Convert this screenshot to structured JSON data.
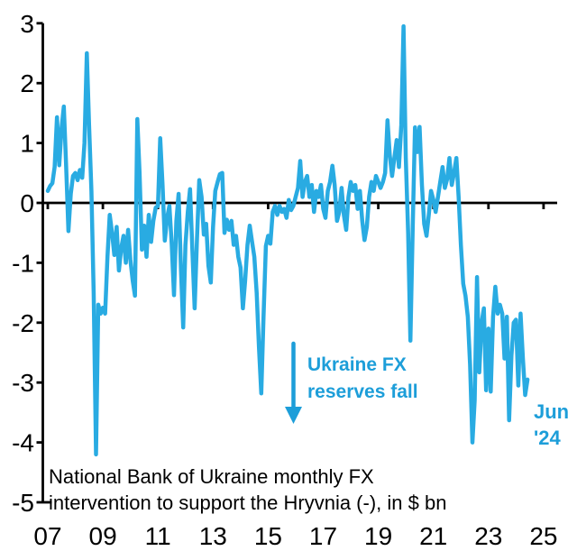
{
  "chart_data": {
    "type": "line",
    "title": "",
    "series_name": "National Bank of Ukraine monthly FX intervention, $ bn",
    "x_monthly_from": "2007-01",
    "x_monthly_to": "2024-06",
    "monthly_values": [
      0.2,
      0.28,
      0.33,
      0.6,
      1.43,
      0.63,
      1.25,
      1.61,
      0.6,
      -0.47,
      0.15,
      0.45,
      0.5,
      0.38,
      0.55,
      0.42,
      1.0,
      2.5,
      1.3,
      0.2,
      -1.5,
      -4.2,
      -1.7,
      -1.85,
      -1.75,
      -1.85,
      -0.9,
      -0.2,
      -0.5,
      -0.87,
      -0.4,
      -1.13,
      -0.75,
      -0.55,
      -1.0,
      -0.45,
      -0.95,
      -1.3,
      -1.55,
      1.4,
      0.5,
      -0.78,
      -0.38,
      -0.9,
      -0.2,
      -0.65,
      -0.3,
      -0.08,
      -0.05,
      1.08,
      0.3,
      -0.63,
      -0.25,
      -0.05,
      -0.7,
      -1.54,
      -0.3,
      0.15,
      -1.1,
      -2.08,
      -0.7,
      -0.15,
      0.23,
      -0.8,
      -1.76,
      -0.6,
      0.38,
      0.1,
      -0.53,
      -0.35,
      -1.05,
      -1.33,
      -0.4,
      0.2,
      0.35,
      0.48,
      0.5,
      -0.5,
      -0.28,
      -0.45,
      -0.3,
      -0.7,
      -0.55,
      -0.9,
      -1.08,
      -1.76,
      -1.3,
      -0.7,
      -0.38,
      -0.65,
      -0.9,
      -1.5,
      -2.4,
      -3.18,
      -1.9,
      -0.72,
      -0.55,
      -0.68,
      -0.15,
      -0.05,
      -0.2,
      -0.05,
      -0.15,
      -0.1,
      -0.25,
      0.05,
      -0.12,
      -0.05,
      0.1,
      0.25,
      0.7,
      0.1,
      0.35,
      0.45,
      0.1,
      0.3,
      -0.15,
      0.2,
      0.1,
      0.3,
      -0.1,
      -0.25,
      0.2,
      0.35,
      0.62,
      0.3,
      -0.3,
      -0.15,
      0.25,
      -0.2,
      -0.45,
      0.1,
      0.35,
      0.2,
      0.3,
      -0.1,
      0.2,
      -0.3,
      -0.62,
      -0.4,
      0.1,
      0.35,
      0.2,
      0.45,
      0.35,
      0.25,
      0.35,
      0.5,
      1.38,
      0.8,
      0.45,
      0.75,
      1.05,
      0.6,
      1.3,
      2.95,
      0.75,
      -0.5,
      -2.3,
      -0.4,
      1.26,
      0.85,
      1.27,
      0.3,
      -0.35,
      -0.55,
      -0.2,
      0.2,
      0.05,
      -0.15,
      0.1,
      0.35,
      0.6,
      0.25,
      0.4,
      0.75,
      0.3,
      0.5,
      0.75,
      0.1,
      -0.7,
      -1.35,
      -1.55,
      -1.9,
      -2.7,
      -4.0,
      -3.3,
      -1.24,
      -2.83,
      -2.0,
      -1.76,
      -3.13,
      -2.1,
      -3.15,
      -1.9,
      -1.4,
      -1.85,
      -1.7,
      -1.85,
      -2.6,
      -1.9,
      -3.63,
      -2.55,
      -2.0,
      -1.95,
      -3.05,
      -1.85,
      -2.6,
      -3.21,
      -2.95
    ],
    "ylim": [
      -5,
      3
    ],
    "y_ticks": [
      3,
      2,
      1,
      0,
      -1,
      -2,
      -3,
      -4,
      -5
    ],
    "y_tick_labels": [
      "3",
      "2",
      "1",
      "0",
      "-1",
      "-2",
      "-3",
      "-4",
      "-5"
    ],
    "x_tick_years": [
      2007,
      2009,
      2011,
      2013,
      2015,
      2017,
      2019,
      2021,
      2023,
      2025
    ],
    "x_tick_labels": [
      "07",
      "09",
      "11",
      "13",
      "15",
      "17",
      "19",
      "21",
      "23",
      "25"
    ],
    "grid": false,
    "legend": false,
    "line_color": "#29ABE2",
    "axis_color": "#000000",
    "annotation_color": "#1D9ED9"
  },
  "annotations": {
    "arrow_note": {
      "line1": "Ukraine FX",
      "line2": "reserves fall"
    },
    "end_label": {
      "line1": "Jun",
      "line2": "'24"
    }
  },
  "caption": {
    "line1": "National Bank of Ukraine monthly FX",
    "line2": "intervention to support the Hryvnia (-), in $ bn"
  }
}
